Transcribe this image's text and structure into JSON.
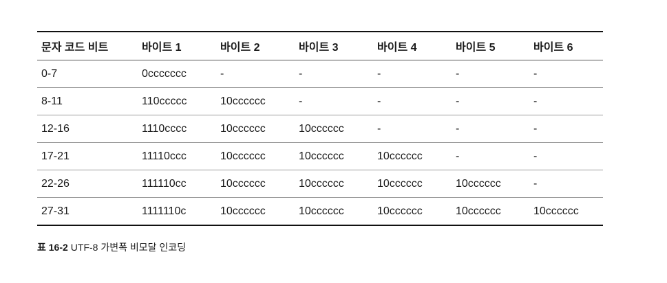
{
  "table": {
    "headers": [
      "문자 코드 비트",
      "바이트 1",
      "바이트 2",
      "바이트 3",
      "바이트 4",
      "바이트 5",
      "바이트 6"
    ],
    "rows": [
      [
        "0-7",
        "0ccccccc",
        "-",
        "-",
        "-",
        "-",
        "-"
      ],
      [
        "8-11",
        "110ccccc",
        "10cccccc",
        "-",
        "-",
        "-",
        "-"
      ],
      [
        "12-16",
        "1110cccc",
        "10cccccc",
        "10cccccc",
        "-",
        "-",
        "-"
      ],
      [
        "17-21",
        "11110ccc",
        "10cccccc",
        "10cccccc",
        "10cccccc",
        "-",
        "-"
      ],
      [
        "22-26",
        "111110cc",
        "10cccccc",
        "10cccccc",
        "10cccccc",
        "10cccccc",
        "-"
      ],
      [
        "27-31",
        "1111110c",
        "10cccccc",
        "10cccccc",
        "10cccccc",
        "10cccccc",
        "10cccccc"
      ]
    ]
  },
  "caption": {
    "number": "표 16-2",
    "text": "UTF-8 가변폭 비모달 인코딩"
  }
}
